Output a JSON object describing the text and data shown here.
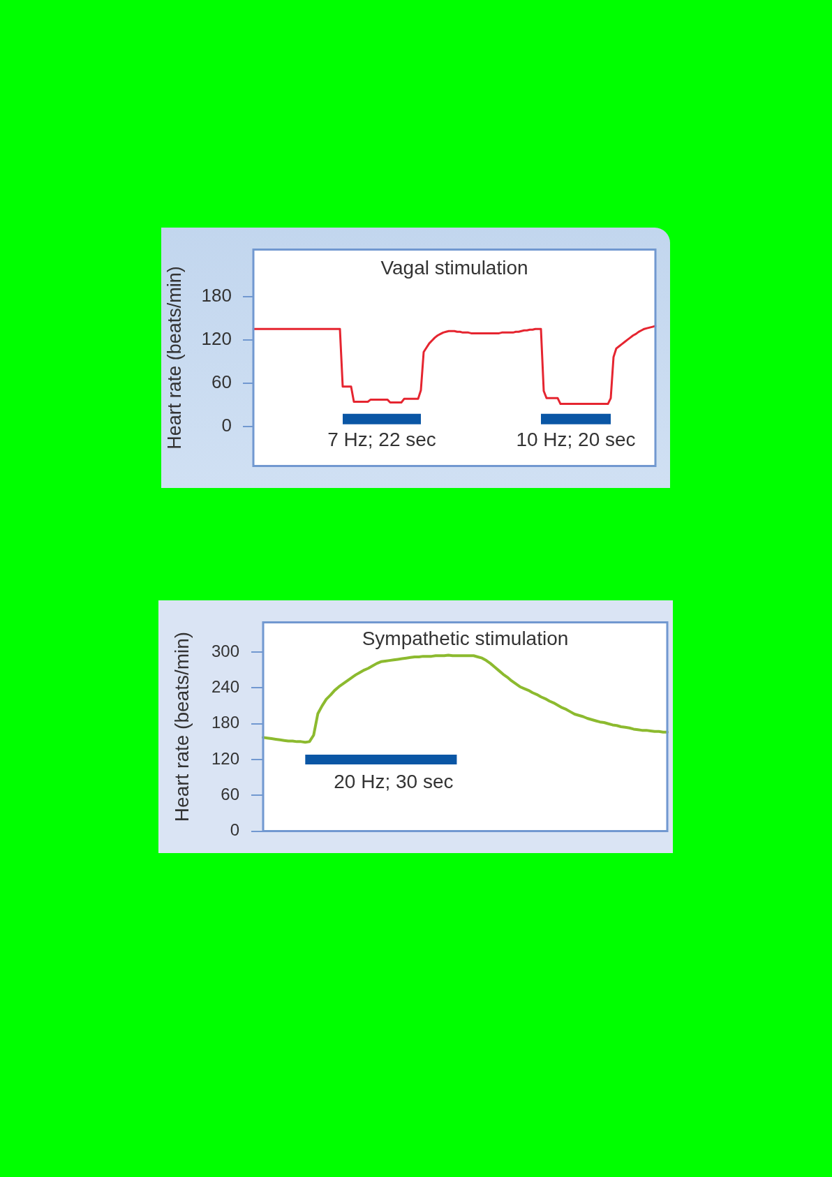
{
  "chart_data": [
    {
      "type": "line",
      "title": "Vagal stimulation",
      "ylabel": "Heart rate (beats/min)",
      "categories": [
        null,
        null,
        null,
        null,
        null,
        null,
        null,
        null,
        null,
        null,
        null,
        null,
        null,
        null,
        null,
        null,
        null,
        null,
        null,
        null,
        null,
        null,
        null,
        null,
        null,
        null,
        null,
        null,
        null,
        null,
        null,
        null,
        null,
        null,
        null,
        null,
        null,
        null,
        null,
        null,
        null,
        null,
        null,
        null,
        null,
        null,
        null,
        null,
        null,
        null,
        null,
        null,
        null,
        null,
        null,
        null,
        null,
        null,
        null,
        null,
        null,
        null,
        null,
        null,
        null,
        null,
        null,
        null,
        null,
        null,
        null,
        null,
        null,
        null,
        null,
        null,
        null,
        null,
        null,
        null,
        null,
        null,
        null,
        null,
        null,
        null,
        null,
        null,
        null,
        null,
        null,
        null,
        null,
        null,
        null,
        null,
        null,
        null,
        null,
        null,
        null,
        null,
        null,
        null,
        null,
        null,
        null,
        null,
        null,
        null,
        null,
        null,
        null,
        null,
        null,
        null,
        null,
        null,
        null,
        null,
        null,
        null,
        null,
        null,
        null,
        null,
        null,
        null,
        null,
        null,
        null,
        null,
        null,
        null,
        null,
        null,
        null,
        null,
        null,
        null,
        null,
        null,
        null,
        null,
        null
      ],
      "series": [
        {
          "color": "#e52530",
          "values": [
            135,
            135,
            135,
            135,
            135,
            135,
            135,
            135,
            135,
            135,
            135,
            135,
            135,
            135,
            135,
            135,
            135,
            135,
            135,
            135,
            135,
            135,
            135,
            135,
            135,
            135,
            135,
            135,
            135,
            135,
            135,
            135,
            55,
            55,
            55,
            55,
            34,
            34,
            34,
            34,
            34,
            34,
            37,
            37,
            37,
            37,
            37,
            37,
            37,
            33,
            33,
            33,
            33,
            33,
            38,
            38,
            38,
            38,
            38,
            38,
            50,
            103,
            109,
            115,
            119,
            123,
            126,
            128,
            130,
            131,
            132,
            132,
            132,
            131,
            131,
            130,
            130,
            130,
            129,
            129,
            129,
            129,
            129,
            129,
            129,
            129,
            129,
            129,
            129,
            130,
            130,
            130,
            130,
            130,
            131,
            131,
            132,
            133,
            133,
            134,
            134,
            135,
            135,
            135,
            49,
            39,
            39,
            39,
            39,
            39,
            31,
            31,
            31,
            31,
            31,
            31,
            31,
            31,
            31,
            31,
            31,
            31,
            31,
            31,
            31,
            31,
            31,
            31,
            39,
            96,
            108,
            111,
            114,
            117,
            120,
            123,
            126,
            128,
            131,
            133,
            135,
            136,
            137,
            138,
            139
          ]
        },
        {
          "name": "7 Hz; 22 sec",
          "color": "#0a56a5",
          "values": [
            null,
            null,
            null,
            null,
            null,
            null,
            null,
            null,
            null,
            null,
            null,
            null,
            null,
            null,
            null,
            null,
            null,
            null,
            null,
            null,
            null,
            null,
            null,
            null,
            null,
            null,
            null,
            null,
            null,
            null,
            null,
            null,
            10,
            10,
            10,
            10,
            10,
            10,
            10,
            10,
            10,
            10,
            10,
            10,
            10,
            10,
            10,
            10,
            10,
            10,
            10,
            10,
            10,
            10,
            10,
            10,
            10,
            10,
            10,
            10,
            10,
            null,
            null,
            null,
            null,
            null,
            null,
            null,
            null,
            null,
            null,
            null,
            null,
            null,
            null,
            null,
            null,
            null,
            null,
            null,
            null,
            null,
            null,
            null,
            null,
            null,
            null,
            null,
            null,
            null,
            null,
            null,
            null,
            null,
            null,
            null,
            null,
            null,
            null,
            null,
            null,
            null,
            null,
            null,
            null,
            null,
            null,
            null,
            null,
            null,
            null,
            null,
            null,
            null,
            null,
            null,
            null,
            null,
            null,
            null,
            null,
            null,
            null,
            null,
            null,
            null,
            null,
            null,
            null,
            null,
            null,
            null,
            null,
            null,
            null,
            null,
            null,
            null,
            null,
            null,
            null,
            null,
            null,
            null,
            null
          ]
        },
        {
          "name": "10 Hz; 20 sec",
          "color": "#0a56a5",
          "values": [
            null,
            null,
            null,
            null,
            null,
            null,
            null,
            null,
            null,
            null,
            null,
            null,
            null,
            null,
            null,
            null,
            null,
            null,
            null,
            null,
            null,
            null,
            null,
            null,
            null,
            null,
            null,
            null,
            null,
            null,
            null,
            null,
            null,
            null,
            null,
            null,
            null,
            null,
            null,
            null,
            null,
            null,
            null,
            null,
            null,
            null,
            null,
            null,
            null,
            null,
            null,
            null,
            null,
            null,
            null,
            null,
            null,
            null,
            null,
            null,
            null,
            null,
            null,
            null,
            null,
            null,
            null,
            null,
            null,
            null,
            null,
            null,
            null,
            null,
            null,
            null,
            null,
            null,
            null,
            null,
            null,
            null,
            null,
            null,
            null,
            null,
            null,
            null,
            null,
            null,
            null,
            null,
            null,
            null,
            null,
            null,
            null,
            null,
            null,
            null,
            null,
            null,
            null,
            10,
            10,
            10,
            10,
            10,
            10,
            10,
            10,
            10,
            10,
            10,
            10,
            10,
            10,
            10,
            10,
            10,
            10,
            10,
            10,
            10,
            10,
            10,
            10,
            10,
            10,
            null,
            null,
            null,
            null,
            null,
            null,
            null,
            null,
            null,
            null,
            null,
            null,
            null,
            null,
            null,
            null
          ]
        }
      ],
      "ylim": [
        -55,
        245
      ],
      "yticks": [
        0,
        60,
        120,
        180
      ],
      "tick_labels": "y",
      "marker": "none"
    },
    {
      "type": "line",
      "title": "Sympathetic stimulation",
      "ylabel": "Heart rate (beats/min)",
      "categories": [
        null,
        null,
        null,
        null,
        null,
        null,
        null,
        null,
        null,
        null,
        null,
        null,
        null,
        null,
        null,
        null,
        null,
        null,
        null,
        null,
        null,
        null,
        null,
        null,
        null,
        null,
        null,
        null,
        null,
        null,
        null,
        null,
        null,
        null,
        null,
        null,
        null,
        null,
        null,
        null,
        null,
        null,
        null,
        null,
        null,
        null,
        null,
        null,
        null,
        null,
        null,
        null,
        null,
        null,
        null,
        null,
        null,
        null,
        null,
        null,
        null,
        null,
        null,
        null,
        null,
        null,
        null,
        null,
        null,
        null,
        null,
        null,
        null,
        null,
        null,
        null,
        null,
        null,
        null,
        null,
        null,
        null,
        null,
        null,
        null,
        null,
        null,
        null,
        null,
        null,
        null,
        null,
        null,
        null,
        null,
        null,
        null
      ],
      "series": [
        {
          "color": "#8cba2f",
          "values": [
            157,
            156,
            155,
            154,
            153,
            152,
            151,
            151,
            150,
            150,
            149,
            150,
            161,
            197,
            210,
            221,
            228,
            236,
            242,
            247,
            252,
            257,
            262,
            266,
            270,
            273,
            277,
            281,
            284,
            285,
            286,
            287,
            288,
            289,
            290,
            291,
            292,
            292,
            293,
            293,
            293,
            294,
            294,
            294,
            295,
            294,
            294,
            294,
            294,
            294,
            294,
            292,
            290,
            286,
            281,
            275,
            269,
            263,
            258,
            252,
            247,
            242,
            239,
            236,
            232,
            229,
            225,
            222,
            218,
            215,
            211,
            207,
            204,
            200,
            196,
            194,
            192,
            189,
            187,
            185,
            183,
            182,
            180,
            178,
            177,
            175,
            174,
            173,
            171,
            170,
            169,
            169,
            168,
            167,
            167,
            166,
            166
          ]
        },
        {
          "name": "20 Hz; 30 sec",
          "color": "#0a56a5",
          "values": [
            null,
            null,
            null,
            null,
            null,
            null,
            null,
            null,
            null,
            null,
            120,
            120,
            120,
            120,
            120,
            120,
            120,
            120,
            120,
            120,
            120,
            120,
            120,
            120,
            120,
            120,
            120,
            120,
            120,
            120,
            120,
            120,
            120,
            120,
            120,
            120,
            120,
            120,
            120,
            120,
            120,
            120,
            120,
            120,
            120,
            120,
            120,
            null,
            null,
            null,
            null,
            null,
            null,
            null,
            null,
            null,
            null,
            null,
            null,
            null,
            null,
            null,
            null,
            null,
            null,
            null,
            null,
            null,
            null,
            null,
            null,
            null,
            null,
            null,
            null,
            null,
            null,
            null,
            null,
            null,
            null,
            null,
            null,
            null,
            null,
            null,
            null,
            null,
            null,
            null,
            null,
            null,
            null,
            null,
            null,
            null,
            null
          ]
        }
      ],
      "ylim": [
        0,
        350
      ],
      "yticks": [
        0,
        60,
        120,
        180,
        240,
        300
      ],
      "tick_labels": "y",
      "marker": "none"
    }
  ]
}
